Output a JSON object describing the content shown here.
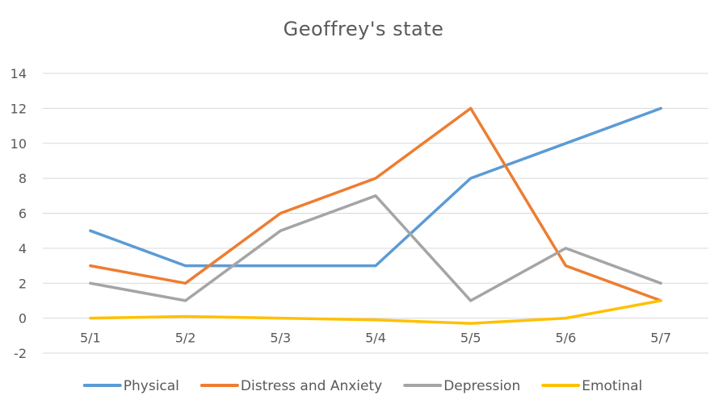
{
  "chart_data": {
    "type": "line",
    "title": "Geoffrey's state",
    "categories": [
      "5/1",
      "5/2",
      "5/3",
      "5/4",
      "5/5",
      "5/6",
      "5/7"
    ],
    "series": [
      {
        "name": "Physical",
        "color": "#5B9BD5",
        "values": [
          5,
          3,
          3,
          3,
          8,
          10,
          12
        ]
      },
      {
        "name": "Distress and Anxiety",
        "color": "#ED7D31",
        "values": [
          3,
          2,
          6,
          8,
          12,
          3,
          1
        ]
      },
      {
        "name": "Depression",
        "color": "#A5A5A5",
        "values": [
          2,
          1,
          5,
          7,
          1,
          4,
          2
        ]
      },
      {
        "name": "Emotinal",
        "color": "#FFC000",
        "values": [
          0,
          0.1,
          0,
          -0.1,
          -0.3,
          0,
          1
        ]
      }
    ],
    "ylim": [
      -2,
      14
    ],
    "yticks": [
      "-2",
      "0",
      "2",
      "4",
      "6",
      "8",
      "10",
      "12",
      "14"
    ],
    "grid": true,
    "legend": "bottom",
    "gridline_color": "#D9D9D9"
  }
}
